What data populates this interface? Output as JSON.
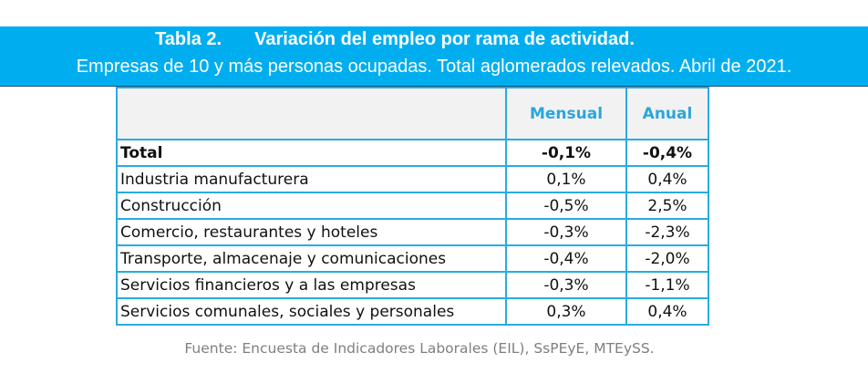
{
  "header": {
    "table_number": "Tabla 2.",
    "title": "Variación del empleo por rama de actividad.",
    "subtitle": "Empresas de 10 y más personas ocupadas. Total aglomerados relevados. Abril de 2021.",
    "background_color": "#00AEEF"
  },
  "table": {
    "columns": [
      "",
      "Mensual",
      "Anual"
    ],
    "rows": [
      {
        "label": "Total",
        "mensual": "-0,1%",
        "anual": "-0,4%",
        "bold": true
      },
      {
        "label": "Industria manufacturera",
        "mensual": "0,1%",
        "anual": "0,4%"
      },
      {
        "label": "Construcción",
        "mensual": "-0,5%",
        "anual": "2,5%"
      },
      {
        "label": "Comercio, restaurantes y hoteles",
        "mensual": "-0,3%",
        "anual": "-2,3%"
      },
      {
        "label": "Transporte, almacenaje y comunicaciones",
        "mensual": "-0,4%",
        "anual": "-2,0%"
      },
      {
        "label": "Servicios financieros y a las empresas",
        "mensual": "-0,3%",
        "anual": "-1,1%"
      },
      {
        "label": "Servicios comunales, sociales y personales",
        "mensual": "0,3%",
        "anual": "0,4%"
      }
    ],
    "border_color": "#29ABE2",
    "header_text_color": "#29A6DC"
  },
  "footer": {
    "source": "Fuente: Encuesta de Indicadores Laborales (EIL), SsPEyE, MTEySS."
  }
}
